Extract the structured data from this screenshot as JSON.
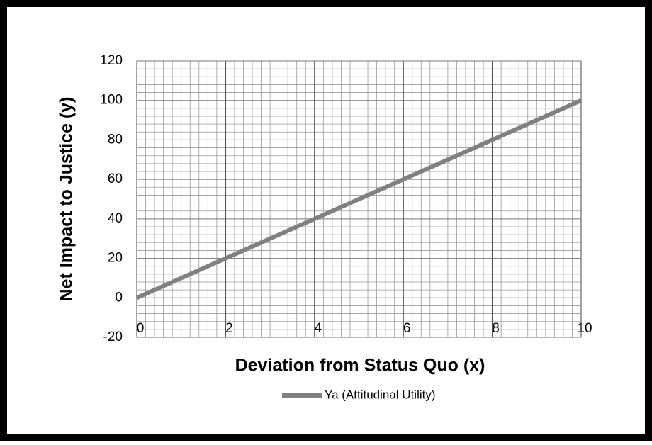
{
  "chart_data": {
    "type": "line",
    "x_label": "Deviation from Status Quo (x)",
    "y_label": "Net Impact to Justice (y)",
    "x": [
      0,
      2,
      4,
      6,
      8,
      10
    ],
    "series": [
      {
        "name": "Ya (Attitudinal Utility)",
        "color": "#808080",
        "values": [
          0,
          20,
          40,
          60,
          80,
          100
        ]
      }
    ],
    "xlim": [
      0,
      10
    ],
    "xticks": [
      0,
      2,
      4,
      6,
      8,
      10
    ],
    "ylim": [
      -20,
      120
    ],
    "yticks": [
      -20,
      0,
      20,
      40,
      60,
      80,
      100,
      120
    ],
    "grid": true,
    "legend": "bottom"
  }
}
